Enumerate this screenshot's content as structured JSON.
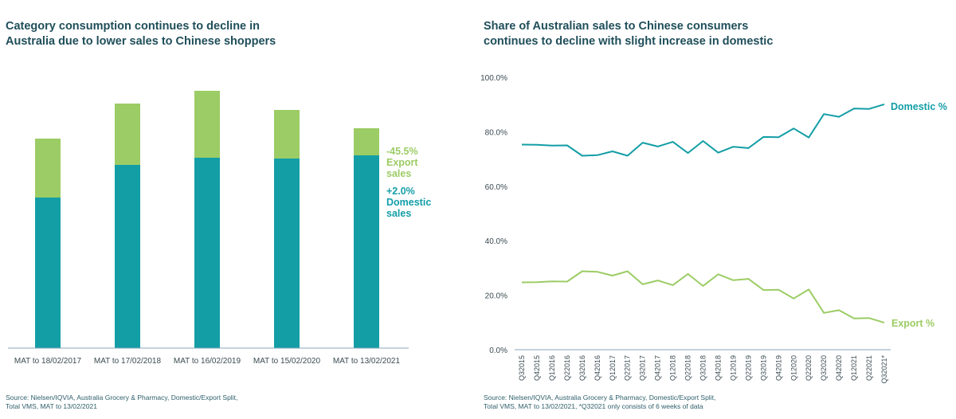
{
  "left_panel": {
    "title": "Category consumption continues to decline in\nAustralia due to lower sales to Chinese shoppers",
    "source": "Source: Nielsen/IQVIA, Australia Grocery & Pharmacy, Domestic/Export Split,\nTotal VMS, MAT to 13/02/2021",
    "annotations": {
      "export_change": "-45.5%",
      "export_label_1": "Export",
      "export_label_2": "sales",
      "domestic_change": "+2.0%",
      "domestic_label_1": "Domestic",
      "domestic_label_2": "sales"
    }
  },
  "right_panel": {
    "title": "Share of Australian sales to Chinese consumers\ncontinues to decline with slight increase in domestic",
    "source": "Source: Nielsen/IQVIA, Australia Grocery & Pharmacy, Domestic/Export Split,\nTotal VMS, MAT to 13/02/2021, *Q32021 only consists of 6 weeks of data"
  },
  "colors": {
    "domestic": "#139ea6",
    "export": "#9ccc65",
    "axis": "#8aa4b8",
    "title": "#1f4e5a"
  },
  "chart_data": [
    {
      "type": "bar",
      "stacked": true,
      "title": "Category consumption continues to decline in Australia due to lower sales to Chinese shoppers",
      "xlabel": "",
      "ylabel": "",
      "y_axis_shown": false,
      "units": "relative index (no axis shown)",
      "categories": [
        "MAT to 18/02/2017",
        "MAT to 17/02/2018",
        "MAT to 16/02/2019",
        "MAT to 15/02/2020",
        "MAT to 13/02/2021"
      ],
      "series": [
        {
          "name": "Domestic sales",
          "values": [
            189,
            230,
            239,
            238,
            242
          ]
        },
        {
          "name": "Export sales",
          "values": [
            74,
            77,
            84,
            61,
            34
          ]
        }
      ],
      "ylim": [
        0,
        340
      ],
      "annotations": [
        "-45.5% Export sales",
        "+2.0% Domestic sales"
      ]
    },
    {
      "type": "line",
      "title": "Share of Australian sales to Chinese consumers continues to decline with slight increase in domestic",
      "xlabel": "",
      "ylabel": "",
      "x": [
        "Q32015",
        "Q42015",
        "Q12016",
        "Q22016",
        "Q32016",
        "Q42016",
        "Q12017",
        "Q22017",
        "Q32017",
        "Q42017",
        "Q12018",
        "Q22018",
        "Q32018",
        "Q42018",
        "Q12019",
        "Q22019",
        "Q32019",
        "Q42019",
        "Q12020",
        "Q22020",
        "Q32020",
        "Q42020",
        "Q12021",
        "Q22021",
        "Q32021*"
      ],
      "series": [
        {
          "name": "Domestic %",
          "values": [
            75.3,
            75.2,
            74.9,
            75.0,
            71.2,
            71.4,
            72.8,
            71.2,
            76.0,
            74.6,
            76.3,
            72.2,
            76.6,
            72.3,
            74.5,
            74.0,
            78.1,
            78.0,
            81.2,
            77.9,
            86.5,
            85.5,
            88.5,
            88.4,
            90.1
          ]
        },
        {
          "name": "Export %",
          "values": [
            24.7,
            24.8,
            25.1,
            25.0,
            28.8,
            28.6,
            27.2,
            28.8,
            24.0,
            25.4,
            23.7,
            27.8,
            23.4,
            27.7,
            25.5,
            26.0,
            21.9,
            22.0,
            18.8,
            22.1,
            13.5,
            14.5,
            11.5,
            11.6,
            9.9
          ]
        }
      ],
      "yticks": [
        "0.0%",
        "20.0%",
        "40.0%",
        "60.0%",
        "80.0%",
        "100.0%"
      ],
      "ylim": [
        0,
        100
      ],
      "grid": false,
      "legend": "inline labels at line ends (right)"
    }
  ]
}
